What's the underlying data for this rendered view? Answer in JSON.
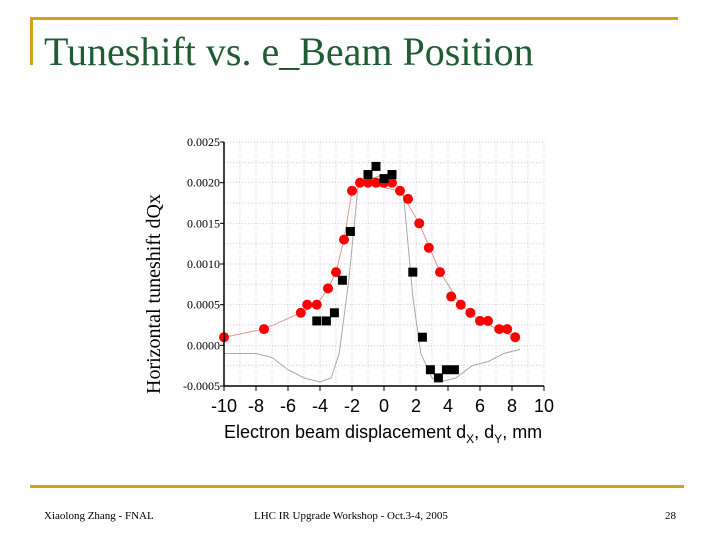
{
  "slide": {
    "title": "Tuneshift vs. e_Beam Position",
    "footer_left": "Xiaolong Zhang - FNAL",
    "footer_center": "LHC IR Upgrade Workshop - Oct.3-4, 2005",
    "page_number": "28",
    "accent_color": "#d4a017",
    "title_color": "#1f5c33"
  },
  "chart_data": {
    "type": "scatter",
    "title": "",
    "xlabel_main": "Electron beam displacement d",
    "xlabel_sub1": "X",
    "xlabel_mid": ", d",
    "xlabel_sub2": "Y",
    "xlabel_end": ", mm",
    "ylabel": "Horizontal tuneshift dQx",
    "xlim": [
      -10,
      10
    ],
    "ylim": [
      -0.0005,
      0.0025
    ],
    "grid": true,
    "x_ticks": [
      "-10",
      "-8",
      "-6",
      "-4",
      "-2",
      "0",
      "2",
      "4",
      "6",
      "8",
      "10"
    ],
    "y_ticks": [
      "0.0025",
      "0.0020",
      "0.0015",
      "0.0010",
      "0.0005",
      "0.0000",
      "-0.0005"
    ],
    "series": [
      {
        "marker": "circle",
        "color": "#ff0000",
        "points": [
          [
            -10,
            0.0001
          ],
          [
            -7.5,
            0.0002
          ],
          [
            -5.2,
            0.0004
          ],
          [
            -4.8,
            0.0005
          ],
          [
            -4.2,
            0.0005
          ],
          [
            -3.5,
            0.0007
          ],
          [
            -3.0,
            0.0009
          ],
          [
            -2.5,
            0.0013
          ],
          [
            -2.0,
            0.0019
          ],
          [
            -1.5,
            0.002
          ],
          [
            -1.0,
            0.002
          ],
          [
            -0.5,
            0.002
          ],
          [
            0,
            0.002
          ],
          [
            0.5,
            0.002
          ],
          [
            1.0,
            0.0019
          ],
          [
            1.5,
            0.0018
          ],
          [
            2.2,
            0.0015
          ],
          [
            2.8,
            0.0012
          ],
          [
            3.5,
            0.0009
          ],
          [
            4.2,
            0.0006
          ],
          [
            4.8,
            0.0005
          ],
          [
            5.4,
            0.0004
          ],
          [
            6.0,
            0.0003
          ],
          [
            6.5,
            0.0003
          ],
          [
            7.2,
            0.0002
          ],
          [
            7.7,
            0.0002
          ],
          [
            8.2,
            0.0001
          ]
        ]
      },
      {
        "marker": "square",
        "color": "#000000",
        "points": [
          [
            -4.2,
            0.0003
          ],
          [
            -3.6,
            0.0003
          ],
          [
            -3.1,
            0.0004
          ],
          [
            -2.6,
            0.0008
          ],
          [
            -2.1,
            0.0014
          ],
          [
            -1.0,
            0.0021
          ],
          [
            -0.5,
            0.0022
          ],
          [
            0,
            0.00205
          ],
          [
            0.5,
            0.0021
          ],
          [
            1.8,
            0.0009
          ],
          [
            2.4,
            0.0001
          ],
          [
            2.9,
            -0.0003
          ],
          [
            3.4,
            -0.0004
          ],
          [
            3.9,
            -0.0003
          ],
          [
            4.4,
            -0.0003
          ]
        ]
      }
    ],
    "lines": [
      {
        "color": "#e79090",
        "points": [
          [
            -10,
            0.0001
          ],
          [
            -7.5,
            0.0002
          ],
          [
            -5.2,
            0.0004
          ],
          [
            -4.2,
            0.0005
          ],
          [
            -3.5,
            0.0007
          ],
          [
            -3.0,
            0.0009
          ],
          [
            -2.5,
            0.0013
          ],
          [
            -2.0,
            0.0019
          ],
          [
            -1.5,
            0.002
          ],
          [
            1.0,
            0.0019
          ],
          [
            2.2,
            0.0015
          ],
          [
            3.5,
            0.0009
          ],
          [
            4.8,
            0.0005
          ],
          [
            6.0,
            0.0003
          ],
          [
            8.2,
            0.0001
          ]
        ]
      },
      {
        "color": "#a8a8a8",
        "points": [
          [
            -10,
            -0.0001
          ],
          [
            -8,
            -0.0001
          ],
          [
            -7,
            -0.00015
          ],
          [
            -6,
            -0.0003
          ],
          [
            -5,
            -0.0004
          ],
          [
            -4,
            -0.00045
          ],
          [
            -3.3,
            -0.0004
          ],
          [
            -2.8,
            -0.0001
          ],
          [
            -2.2,
            0.0008
          ],
          [
            -1.6,
            0.002
          ],
          [
            0,
            0.0021
          ],
          [
            1.2,
            0.0019
          ],
          [
            1.8,
            0.0006
          ],
          [
            2.3,
            -0.0001
          ],
          [
            3.0,
            -0.0004
          ],
          [
            3.5,
            -0.00045
          ],
          [
            4.5,
            -0.0004
          ],
          [
            5.5,
            -0.00025
          ],
          [
            6.5,
            -0.0002
          ],
          [
            7.5,
            -0.0001
          ],
          [
            8.5,
            -5e-05
          ]
        ]
      }
    ]
  }
}
